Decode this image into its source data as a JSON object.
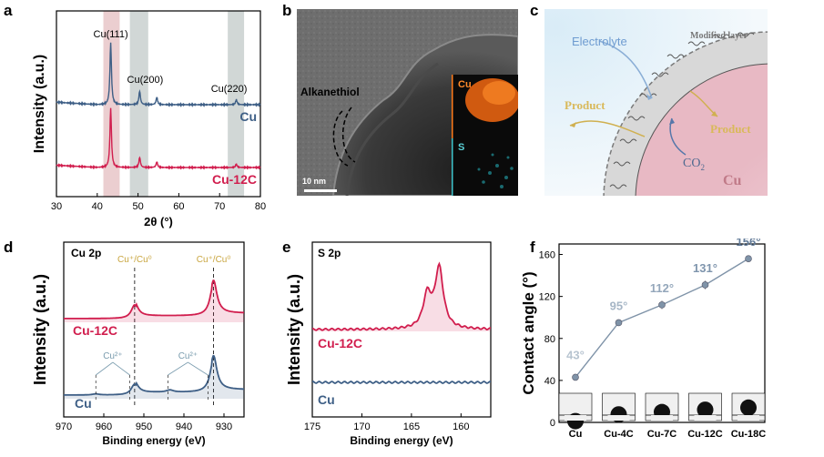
{
  "panels": {
    "a": "a",
    "b": "b",
    "c": "c",
    "d": "d",
    "e": "e",
    "f": "f"
  },
  "panel_b": {
    "alkanethiol": "Alkanethiol",
    "scale_bar": "10 nm",
    "map_cu": "Cu",
    "map_s": "S"
  },
  "panel_c": {
    "electrolyte": "Electrolyte",
    "modified_layer": "Modified layer",
    "product_left": "Product",
    "product_right": "Product",
    "co2": "CO",
    "co2_sub": "2",
    "cu": "Cu"
  },
  "panel_f_images": [
    "Cu",
    "Cu-4C",
    "Cu-7C",
    "Cu-12C",
    "Cu-18C"
  ],
  "colors": {
    "blue_series": "#3e5f86",
    "red_series": "#d11e4e",
    "pink_band": "#e8c5c8",
    "grey_band": "#c9d0cf",
    "gold": "#c9a640",
    "cu_label": "#c07a88"
  },
  "chart_data": [
    {
      "id": "a",
      "type": "line",
      "title": "",
      "xlabel": "2θ (°)",
      "ylabel": "Intensity (a.u.)",
      "xlim": [
        30,
        80
      ],
      "xticks": [
        30,
        40,
        50,
        60,
        70,
        80
      ],
      "bands": [
        [
          41.5,
          45.5
        ],
        [
          48,
          52.5
        ],
        [
          72,
          76
        ]
      ],
      "peak_labels": [
        {
          "text": "Cu(111)",
          "x": 43.3
        },
        {
          "text": "Cu(200)",
          "x": 50.4
        },
        {
          "text": "Cu(220)",
          "x": 74.1
        }
      ],
      "series": [
        {
          "name": "Cu",
          "offset": 1.0,
          "peaks": [
            [
              43.3,
              1.0
            ],
            [
              50.4,
              0.22
            ],
            [
              54.6,
              0.12
            ],
            [
              74.1,
              0.08
            ]
          ]
        },
        {
          "name": "Cu-12C",
          "offset": 0.0,
          "peaks": [
            [
              43.3,
              1.05
            ],
            [
              50.4,
              0.18
            ],
            [
              54.6,
              0.1
            ],
            [
              74.1,
              0.06
            ]
          ]
        }
      ]
    },
    {
      "id": "d",
      "type": "line",
      "title": "Cu 2p",
      "xlabel": "Binding energy (eV)",
      "ylabel": "Intensity (a.u.)",
      "xlim": [
        970,
        925
      ],
      "xticks": [
        970,
        960,
        950,
        940,
        930
      ],
      "markers": [
        {
          "text": "Cu⁺/Cu⁰",
          "x": 952.3
        },
        {
          "text": "Cu⁺/Cu⁰",
          "x": 932.6
        }
      ],
      "satellites": [
        {
          "text": "Cu²⁺",
          "x": [
            962.0,
            953.5
          ]
        },
        {
          "text": "Cu²⁺",
          "x": [
            944.0,
            934.0
          ]
        }
      ],
      "series": [
        {
          "name": "Cu-12C",
          "peaks": [
            [
              952.3,
              0.25
            ],
            [
              932.6,
              0.6
            ]
          ]
        },
        {
          "name": "Cu",
          "peaks": [
            [
              952.3,
              0.2
            ],
            [
              932.6,
              0.62
            ],
            [
              943.5,
              0.04
            ],
            [
              962.0,
              0.02
            ]
          ]
        }
      ]
    },
    {
      "id": "e",
      "type": "line",
      "title": "S 2p",
      "xlabel": "Binding energy (eV)",
      "ylabel": "Intensity (a.u.)",
      "xlim": [
        175,
        157
      ],
      "xticks": [
        175,
        170,
        165,
        160
      ],
      "series": [
        {
          "name": "Cu-12C",
          "peaks": [
            [
              163.4,
              0.3
            ],
            [
              162.2,
              0.55
            ]
          ]
        },
        {
          "name": "Cu",
          "peaks": []
        }
      ]
    },
    {
      "id": "f",
      "type": "line",
      "xlabel": "",
      "ylabel": "Contact angle (°)",
      "ylim": [
        0,
        170
      ],
      "yticks": [
        0,
        40,
        80,
        120,
        160
      ],
      "categories": [
        "Cu",
        "Cu-4C",
        "Cu-7C",
        "Cu-12C",
        "Cu-18C"
      ],
      "values": [
        43,
        95,
        112,
        131,
        156
      ],
      "errors": [
        1.5,
        2,
        4,
        4,
        2
      ],
      "data_labels": [
        "43°",
        "95°",
        "112°",
        "131°",
        "156°"
      ]
    }
  ]
}
